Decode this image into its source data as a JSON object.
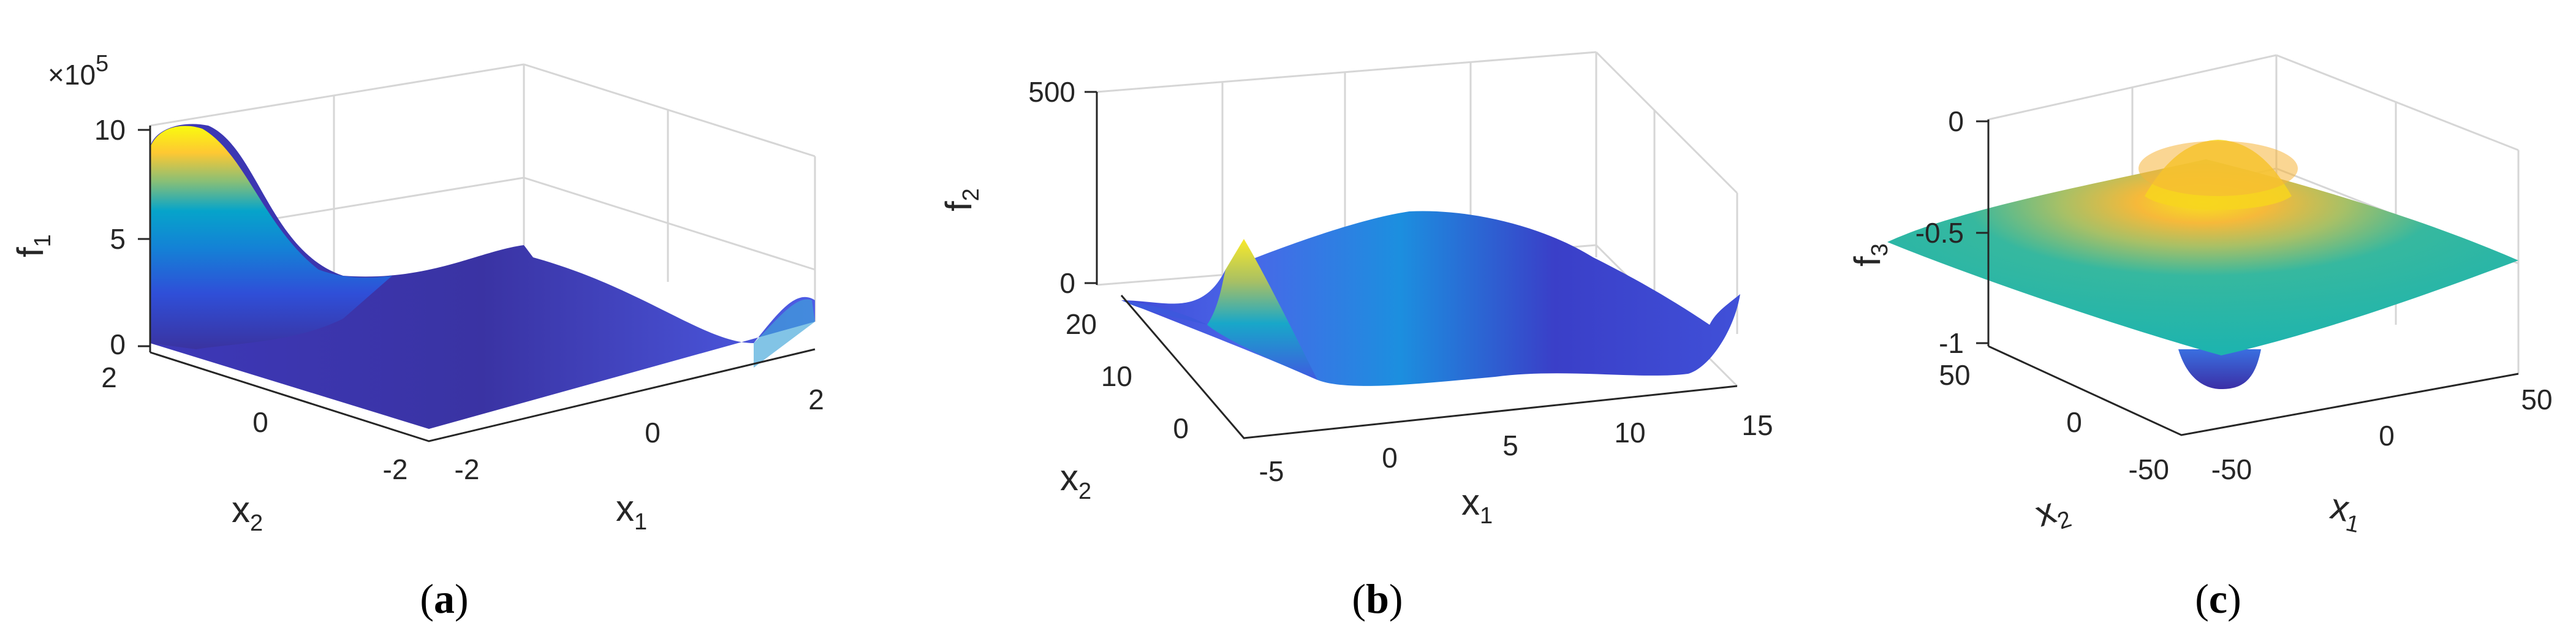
{
  "chart_data": [
    {
      "type": "surface",
      "panel": "(a)",
      "caption_letter": "a",
      "zlabel": "f",
      "zlabel_sub": "1",
      "xlabel": "x",
      "xlabel_sub": "1",
      "ylabel": "x",
      "ylabel_sub": "2",
      "exponent": "×10",
      "exponent_power": "5",
      "x_ticks": [
        "-2",
        "0",
        "2"
      ],
      "y_ticks": [
        "-2",
        "0",
        "2"
      ],
      "z_ticks": [
        "0",
        "5",
        "10"
      ],
      "xlim": [
        -2,
        2
      ],
      "ylim": [
        -2,
        2
      ],
      "zlim": [
        0,
        1000000
      ],
      "colormap": "parula",
      "colors": [
        "#352a87",
        "#0f5cdd",
        "#1481d6",
        "#06a4ca",
        "#2eb7a4",
        "#87bf77",
        "#d1bb59",
        "#fec832",
        "#f9fb0e"
      ]
    },
    {
      "type": "surface",
      "panel": "(b)",
      "caption_letter": "b",
      "zlabel": "f",
      "zlabel_sub": "2",
      "xlabel": "x",
      "xlabel_sub": "1",
      "ylabel": "x",
      "ylabel_sub": "2",
      "x_ticks": [
        "-5",
        "0",
        "5",
        "10",
        "15"
      ],
      "y_ticks": [
        "0",
        "10",
        "20"
      ],
      "z_ticks": [
        "0",
        "500"
      ],
      "xlim": [
        -5,
        15
      ],
      "ylim": [
        0,
        20
      ],
      "zlim": [
        0,
        500
      ],
      "colormap": "parula"
    },
    {
      "type": "surface",
      "panel": "(c)",
      "caption_letter": "c",
      "zlabel": "f",
      "zlabel_sub": "3",
      "xlabel": "x",
      "xlabel_sub": "1",
      "ylabel": "x",
      "ylabel_sub": "2",
      "x_ticks": [
        "-50",
        "0",
        "50"
      ],
      "y_ticks": [
        "-50",
        "0",
        "50"
      ],
      "z_ticks": [
        "-1",
        "-0.5",
        "0"
      ],
      "xlim": [
        -50,
        50
      ],
      "ylim": [
        -50,
        50
      ],
      "zlim": [
        -1,
        0
      ],
      "colormap": "parula"
    }
  ]
}
